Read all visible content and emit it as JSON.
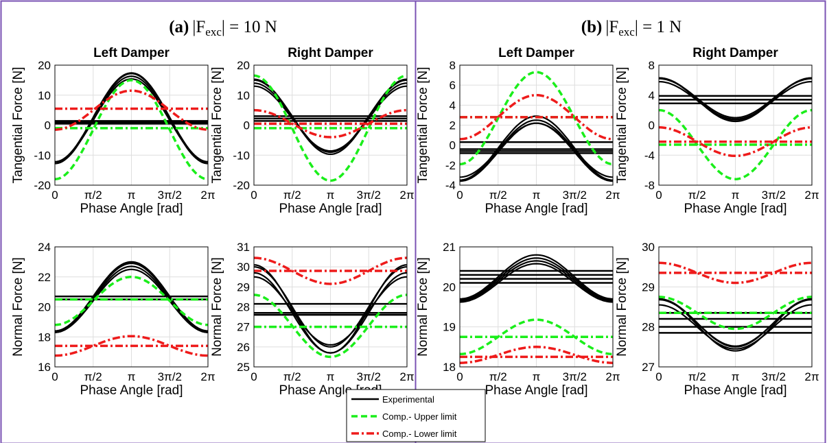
{
  "colors": {
    "frame": "#7a52b3",
    "experimental": "#000000",
    "upper": "#1aee1a",
    "lower": "#ee1b1b",
    "grid": "#dedede"
  },
  "panels": [
    {
      "label": "(a)",
      "title_prefix": "|F",
      "title_sub": "exc",
      "title_suffix": "| = 10 N"
    },
    {
      "label": "(b)",
      "title_prefix": "|F",
      "title_sub": "exc",
      "title_suffix": "| = 1 N"
    }
  ],
  "legend": {
    "items": [
      {
        "label": "Experimental",
        "color": "#000000",
        "style": "solid"
      },
      {
        "label": "Comp.- Upper limit",
        "color": "#1aee1a",
        "style": "dashed"
      },
      {
        "label": "Comp.- Lower limit",
        "color": "#ee1b1b",
        "style": "dashdot"
      }
    ]
  },
  "chart_data": [
    {
      "type": "line",
      "panel": "(a)",
      "title": "Left Damper",
      "xlabel": "Phase Angle [rad]",
      "ylabel": "Tangential Force [N]",
      "xlim": [
        0,
        6.2832
      ],
      "ylim": [
        -20,
        20
      ],
      "xticks": [
        "0",
        "π/2",
        "π",
        "3π/2",
        "2π"
      ],
      "yticks": [
        "-20",
        "-10",
        "0",
        "10",
        "20"
      ],
      "grid": true,
      "experimental": {
        "curves": [
          {
            "mean": 2.2,
            "amp": 15
          },
          {
            "mean": 2.6,
            "amp": 14.8
          },
          {
            "mean": 2.0,
            "amp": 14.3
          },
          {
            "mean": 1.6,
            "amp": 13.8
          }
        ],
        "levels": [
          1.4,
          0.9,
          0.5
        ]
      },
      "upper": {
        "curve": {
          "mean": -1.5,
          "amp": 16.5
        },
        "level": -1.0
      },
      "lower": {
        "curve": {
          "mean": 5.0,
          "amp": 6.5
        },
        "level": 5.5
      }
    },
    {
      "type": "line",
      "panel": "(a)",
      "title": "Right Damper",
      "xlabel": "Phase Angle [rad]",
      "ylabel": "Tangential Force [N]",
      "xlim": [
        0,
        6.2832
      ],
      "ylim": [
        -20,
        20
      ],
      "xticks": [
        "0",
        "π/2",
        "π",
        "3π/2",
        "2π"
      ],
      "yticks": [
        "-20",
        "-10",
        "0",
        "10",
        "20"
      ],
      "grid": true,
      "experimental": {
        "curves": [
          {
            "mean": 2.5,
            "amp": -11.5
          },
          {
            "mean": 3.0,
            "amp": -12.0
          },
          {
            "mean": 2.2,
            "amp": -10.8
          },
          {
            "mean": 2.8,
            "amp": -12.5
          }
        ],
        "levels": [
          3.0,
          2.2,
          1.4
        ]
      },
      "upper": {
        "curve": {
          "mean": -1.0,
          "amp": -17.5
        },
        "level": -1.0
      },
      "lower": {
        "curve": {
          "mean": 0.5,
          "amp": -4.5
        },
        "level": 0.5
      }
    },
    {
      "type": "line",
      "panel": "(a)",
      "title": "",
      "xlabel": "Phase Angle [rad]",
      "ylabel": "Normal Force [N]",
      "xlim": [
        0,
        6.2832
      ],
      "ylim": [
        16,
        24
      ],
      "xticks": [
        "0",
        "π/2",
        "π",
        "3π/2",
        "2π"
      ],
      "yticks": [
        "16",
        "18",
        "20",
        "22",
        "24"
      ],
      "grid": true,
      "experimental": {
        "curves": [
          {
            "mean": 20.6,
            "amp": 2.3
          },
          {
            "mean": 20.7,
            "amp": 2.3
          },
          {
            "mean": 20.5,
            "amp": 2.2
          },
          {
            "mean": 20.4,
            "amp": 2.1
          }
        ],
        "levels": [
          20.7,
          20.5
        ]
      },
      "upper": {
        "curve": {
          "mean": 20.4,
          "amp": 1.6
        },
        "level": 20.5
      },
      "lower": {
        "curve": {
          "mean": 17.4,
          "amp": 0.65
        },
        "level": 17.4
      }
    },
    {
      "type": "line",
      "panel": "(a)",
      "title": "",
      "xlabel": "Phase Angle [rad]",
      "ylabel": "Normal Force [N]",
      "xlim": [
        0,
        6.2832
      ],
      "ylim": [
        25,
        31
      ],
      "xticks": [
        "0",
        "π/2",
        "π",
        "3π/2",
        "2π"
      ],
      "yticks": [
        "25",
        "26",
        "27",
        "28",
        "29",
        "30",
        "31"
      ],
      "grid": true,
      "experimental": {
        "curves": [
          {
            "mean": 28.0,
            "amp": -2.0
          },
          {
            "mean": 27.9,
            "amp": -2.2
          },
          {
            "mean": 27.7,
            "amp": -2.0
          },
          {
            "mean": 27.8,
            "amp": -1.7
          }
        ],
        "levels": [
          28.15,
          27.7,
          27.6
        ]
      },
      "upper": {
        "curve": {
          "mean": 27.05,
          "amp": -1.55
        },
        "level": 27.0
      },
      "lower": {
        "curve": {
          "mean": 29.8,
          "amp": -0.65
        },
        "level": 29.8
      }
    },
    {
      "type": "line",
      "panel": "(b)",
      "title": "Left Damper",
      "xlabel": "Phase Angle [rad]",
      "ylabel": "Tangential Force [N]",
      "xlim": [
        0,
        6.2832
      ],
      "ylim": [
        -4,
        8
      ],
      "xticks": [
        "0",
        "π/2",
        "π",
        "3π/2",
        "2π"
      ],
      "yticks": [
        "-4",
        "-2",
        "0",
        "2",
        "4",
        "6",
        "8"
      ],
      "grid": true,
      "experimental": {
        "curves": [
          {
            "mean": -0.3,
            "amp": 3.2
          },
          {
            "mean": -0.5,
            "amp": 3.0
          },
          {
            "mean": -0.5,
            "amp": 2.7
          },
          {
            "mean": -0.7,
            "amp": 2.9
          }
        ],
        "levels": [
          0.3,
          -0.4,
          -0.6,
          -0.8
        ]
      },
      "upper": {
        "curve": {
          "mean": 2.7,
          "amp": 4.6
        },
        "level": 2.8
      },
      "lower": {
        "curve": {
          "mean": 2.8,
          "amp": 2.2
        },
        "level": 2.8
      }
    },
    {
      "type": "line",
      "panel": "(b)",
      "title": "Right Damper",
      "xlabel": "Phase Angle [rad]",
      "ylabel": "Tangential Force [N]",
      "xlim": [
        0,
        6.2832
      ],
      "ylim": [
        -8,
        8
      ],
      "xticks": [
        "0",
        "π/2",
        "π",
        "3π/2",
        "2π"
      ],
      "yticks": [
        "-8",
        "-4",
        "0",
        "4",
        "8"
      ],
      "grid": true,
      "experimental": {
        "curves": [
          {
            "mean": 3.6,
            "amp": -2.6
          },
          {
            "mean": 3.5,
            "amp": -2.8
          },
          {
            "mean": 3.3,
            "amp": -2.5
          },
          {
            "mean": 3.4,
            "amp": -2.9
          }
        ],
        "levels": [
          3.9,
          3.4,
          2.9
        ]
      },
      "upper": {
        "curve": {
          "mean": -2.6,
          "amp": -4.6
        },
        "level": -2.6
      },
      "lower": {
        "curve": {
          "mean": -2.2,
          "amp": -1.9
        },
        "level": -2.2
      }
    },
    {
      "type": "line",
      "panel": "(b)",
      "title": "",
      "xlabel": "Phase Angle [rad]",
      "ylabel": "Normal Force [N]",
      "xlim": [
        0,
        6.2832
      ],
      "ylim": [
        18,
        21
      ],
      "xticks": [
        "0",
        "π/2",
        "π",
        "3π/2",
        "2π"
      ],
      "yticks": [
        "18",
        "19",
        "20",
        "21"
      ],
      "grid": true,
      "experimental": {
        "curves": [
          {
            "mean": 20.25,
            "amp": 0.55
          },
          {
            "mean": 20.2,
            "amp": 0.52
          },
          {
            "mean": 20.1,
            "amp": 0.48
          },
          {
            "mean": 20.15,
            "amp": 0.5
          }
        ],
        "levels": [
          20.4,
          20.3,
          20.2,
          20.1
        ]
      },
      "upper": {
        "curve": {
          "mean": 18.75,
          "amp": 0.43
        },
        "level": 18.75
      },
      "lower": {
        "curve": {
          "mean": 18.3,
          "amp": 0.2
        },
        "level": 18.25
      }
    },
    {
      "type": "line",
      "panel": "(b)",
      "title": "",
      "xlabel": "Phase Angle [rad]",
      "ylabel": "Normal Force [N]",
      "xlim": [
        0,
        6.2832
      ],
      "ylim": [
        27,
        30
      ],
      "xticks": [
        "0",
        "π/2",
        "π",
        "3π/2",
        "2π"
      ],
      "yticks": [
        "27",
        "28",
        "29",
        "30"
      ],
      "grid": true,
      "experimental": {
        "curves": [
          {
            "mean": 28.1,
            "amp": -0.6
          },
          {
            "mean": 28.05,
            "amp": -0.65
          },
          {
            "mean": 28.0,
            "amp": -0.55
          },
          {
            "mean": 28.1,
            "amp": -0.58
          }
        ],
        "levels": [
          28.35,
          28.2,
          28.0,
          27.85
        ]
      },
      "upper": {
        "curve": {
          "mean": 28.35,
          "amp": -0.4
        },
        "level": 28.35
      },
      "lower": {
        "curve": {
          "mean": 29.35,
          "amp": -0.25
        },
        "level": 29.35
      }
    }
  ]
}
